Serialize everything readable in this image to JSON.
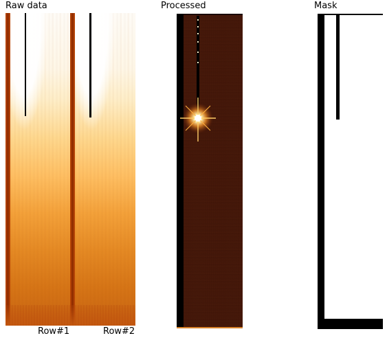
{
  "panels": {
    "raw": {
      "title": "Raw data"
    },
    "processed": {
      "title": "Processed"
    },
    "mask": {
      "title": "Mask"
    }
  },
  "row_labels": [
    "Row#1",
    "Row#2"
  ]
}
